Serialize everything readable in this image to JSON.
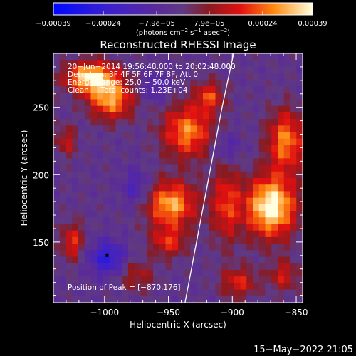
{
  "chart_data": {
    "type": "heatmap",
    "title": "Reconstructed RHESSI Image",
    "xlabel": "Heliocentric X (arcsec)",
    "ylabel": "Heliocentric Y (arcsec)",
    "xlim": [
      -1040,
      -845
    ],
    "ylim": [
      105,
      290
    ],
    "x_ticks": [
      -1000,
      -950,
      -900,
      -850
    ],
    "x_tick_labels": [
      "−1000",
      "−950",
      "−900",
      "−850"
    ],
    "y_ticks": [
      150,
      200,
      250
    ],
    "y_tick_labels": [
      "150",
      "200",
      "250"
    ],
    "colorbar": {
      "ticks": [
        -0.00039,
        -0.00024,
        -7.9e-05,
        7.9e-05,
        0.00024,
        0.00039
      ],
      "tick_labels": [
        "−0.00039",
        "−0.00024",
        "−7.9e−05",
        "7.9e−05",
        "0.00024",
        "0.00039"
      ],
      "units_line": "(photons cm",
      "units_exp1": "−2",
      "units_mid": " s",
      "units_exp2": "−1",
      "units_mid2": " asec",
      "units_exp3": "−2",
      "units_end": ")"
    },
    "info_lines": [
      "20−Jun−2014 19:56:48.000 to 20:02:48.000",
      "Detectors: 3F 4F 5F 6F 7F 8F, Att 0",
      "Energy Range: 25.0 − 50.0 keV",
      "Clean     Total counts: 1.23E+04"
    ],
    "peak_text": "Position of Peak = [−870,176]",
    "peak_marker": [
      -998,
      140
    ],
    "limb_curve": [
      [
        -937,
        105
      ],
      [
        -928,
        150
      ],
      [
        -918,
        200
      ],
      [
        -908,
        250
      ],
      [
        -899,
        290
      ]
    ],
    "grid_nx": 40,
    "grid_ny": 38,
    "sources": [
      {
        "x": -1010,
        "y": 272,
        "sx": 14,
        "sy": 8,
        "amp": 1.05
      },
      {
        "x": -995,
        "y": 255,
        "sx": 12,
        "sy": 10,
        "amp": 0.8
      },
      {
        "x": -935,
        "y": 232,
        "sx": 14,
        "sy": 14,
        "amp": 0.75
      },
      {
        "x": -918,
        "y": 258,
        "sx": 8,
        "sy": 8,
        "amp": 0.55
      },
      {
        "x": -948,
        "y": 178,
        "sx": 14,
        "sy": 12,
        "amp": 0.85
      },
      {
        "x": -950,
        "y": 150,
        "sx": 10,
        "sy": 8,
        "amp": 0.5
      },
      {
        "x": -870,
        "y": 176,
        "sx": 14,
        "sy": 16,
        "amp": 1.1
      },
      {
        "x": -858,
        "y": 225,
        "sx": 10,
        "sy": 16,
        "amp": 0.75
      },
      {
        "x": -905,
        "y": 178,
        "sx": 8,
        "sy": 20,
        "amp": 0.55
      },
      {
        "x": -1025,
        "y": 150,
        "sx": 6,
        "sy": 10,
        "amp": 0.55
      },
      {
        "x": -1030,
        "y": 225,
        "sx": 6,
        "sy": 8,
        "amp": 0.4
      },
      {
        "x": -895,
        "y": 120,
        "sx": 10,
        "sy": 8,
        "amp": 0.5
      },
      {
        "x": -975,
        "y": 125,
        "sx": 10,
        "sy": 8,
        "amp": 0.35
      },
      {
        "x": -860,
        "y": 125,
        "sx": 8,
        "sy": 8,
        "amp": 0.45
      }
    ],
    "negative_regions": [
      {
        "x": -998,
        "y": 138,
        "sx": 10,
        "sy": 9,
        "amp": 0.6
      },
      {
        "x": -975,
        "y": 190,
        "sx": 8,
        "sy": 10,
        "amp": 0.35
      },
      {
        "x": -905,
        "y": 220,
        "sx": 8,
        "sy": 8,
        "amp": 0.3
      },
      {
        "x": -960,
        "y": 265,
        "sx": 8,
        "sy": 8,
        "amp": 0.3
      }
    ]
  },
  "footer": {
    "timestamp": "15−May−2022 21:05"
  }
}
